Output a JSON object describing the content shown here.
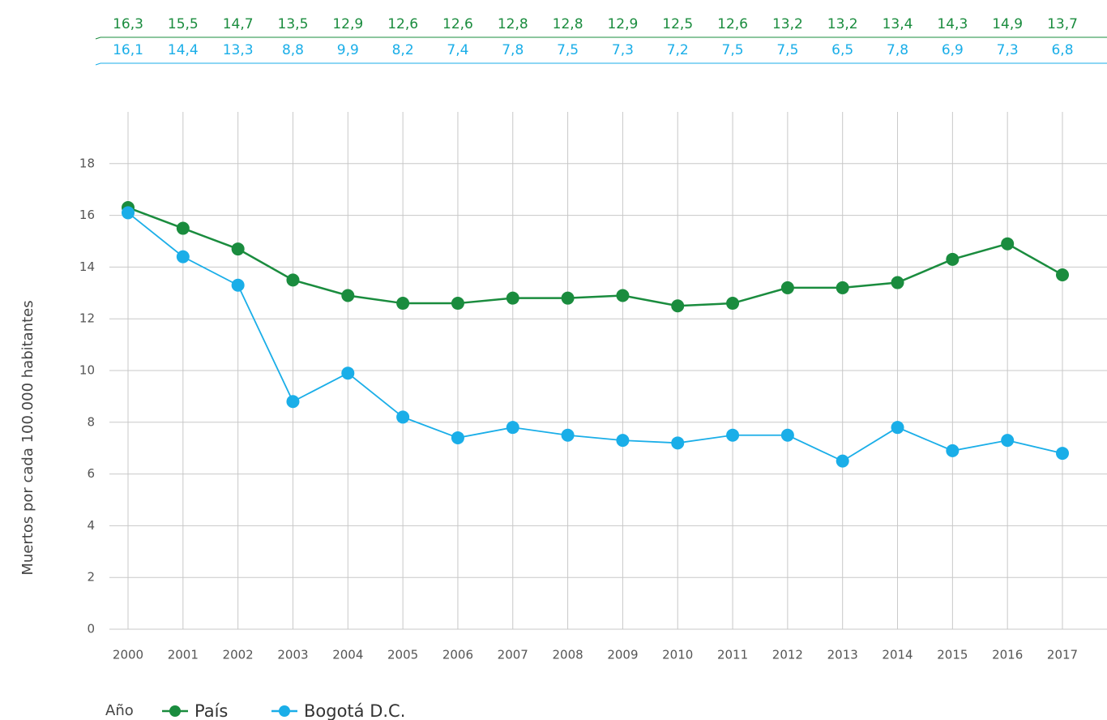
{
  "chart_data": {
    "type": "line",
    "y_label": "Muertos por cada 100.000 habitantes",
    "legend_title": "Año",
    "categories": [
      "2000",
      "2001",
      "2002",
      "2003",
      "2004",
      "2005",
      "2006",
      "2007",
      "2008",
      "2009",
      "2010",
      "2011",
      "2012",
      "2013",
      "2014",
      "2015",
      "2016",
      "2017"
    ],
    "series": [
      {
        "name": "País",
        "color": "#1a8c3e",
        "values": [
          16.3,
          15.5,
          14.7,
          13.5,
          12.9,
          12.6,
          12.6,
          12.8,
          12.8,
          12.9,
          12.5,
          12.6,
          13.2,
          13.2,
          13.4,
          14.3,
          14.9,
          13.7
        ],
        "value_labels": [
          "16,3",
          "15,5",
          "14,7",
          "13,5",
          "12,9",
          "12,6",
          "12,6",
          "12,8",
          "12,8",
          "12,9",
          "12,5",
          "12,6",
          "13,2",
          "13,2",
          "13,4",
          "14,3",
          "14,9",
          "13,7"
        ]
      },
      {
        "name": "Bogotá D.C.",
        "color": "#1aaee8",
        "values": [
          16.1,
          14.4,
          13.3,
          8.8,
          9.9,
          8.2,
          7.4,
          7.8,
          7.5,
          7.3,
          7.2,
          7.5,
          7.5,
          6.5,
          7.8,
          6.9,
          7.3,
          6.8
        ],
        "value_labels": [
          "16,1",
          "14,4",
          "13,3",
          "8,8",
          "9,9",
          "8,2",
          "7,4",
          "7,8",
          "7,5",
          "7,3",
          "7,2",
          "7,5",
          "7,5",
          "6,5",
          "7,8",
          "6,9",
          "7,3",
          "6,8"
        ]
      }
    ],
    "ylim": [
      0,
      20
    ],
    "yticks": [
      0,
      2,
      4,
      6,
      8,
      10,
      12,
      14,
      16,
      18
    ],
    "grid": true
  }
}
